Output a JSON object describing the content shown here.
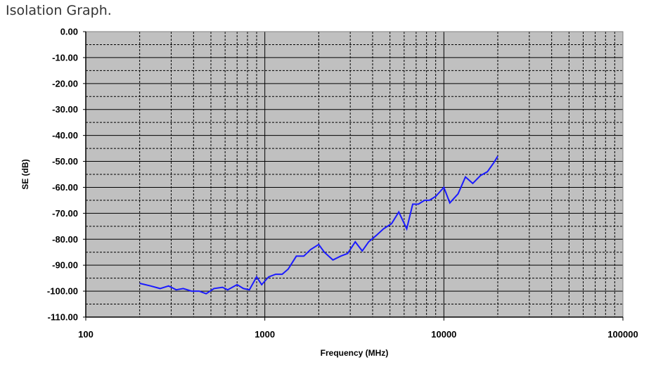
{
  "page": {
    "heading": "Isolation Graph."
  },
  "chart_data": {
    "type": "line",
    "title": "",
    "xlabel": "Frequency (MHz)",
    "ylabel": "SE (dB)",
    "x_scale": "log",
    "xlim": [
      100,
      100000
    ],
    "ylim": [
      -110,
      0
    ],
    "x_ticks": [
      "100",
      "1000",
      "10000",
      "100000"
    ],
    "y_ticks": [
      "0.00",
      "-10.00",
      "-20.00",
      "-30.00",
      "-40.00",
      "-50.00",
      "-60.00",
      "-70.00",
      "-80.00",
      "-90.00",
      "-100.00",
      "-110.00"
    ],
    "grid": true,
    "legend": "none",
    "colors": {
      "plot_background": "#c0c0c0",
      "line": "#1a1aff",
      "grid": "#000000"
    },
    "series": [
      {
        "x": [
          200,
          230,
          260,
          290,
          320,
          350,
          390,
          430,
          470,
          520,
          580,
          620,
          700,
          760,
          820,
          900,
          960,
          1050,
          1150,
          1250,
          1350,
          1500,
          1650,
          1800,
          2000,
          2150,
          2400,
          2650,
          2900,
          3200,
          3500,
          3800,
          4200,
          4600,
          5100,
          5600,
          6200,
          6700,
          7200,
          7800,
          8300,
          9000,
          10000,
          10800,
          12000,
          13200,
          14500,
          16000,
          17500,
          19000,
          20000
        ],
        "y": [
          -97,
          -98,
          -99,
          -98,
          -99.5,
          -99,
          -100,
          -100,
          -101,
          -99,
          -98.5,
          -99.5,
          -97.5,
          -99,
          -99.5,
          -94.5,
          -97.5,
          -94.5,
          -93.5,
          -93.5,
          -91.5,
          -86.5,
          -86.5,
          -84,
          -82,
          -85,
          -88,
          -86.5,
          -85.5,
          -81,
          -84.5,
          -81,
          -78.5,
          -76,
          -74,
          -69.5,
          -76,
          -66.5,
          -66.5,
          -65,
          -65,
          -63.5,
          -60,
          -66,
          -62.5,
          -56,
          -58.5,
          -55.5,
          -54,
          -50.5,
          -48
        ]
      }
    ]
  }
}
